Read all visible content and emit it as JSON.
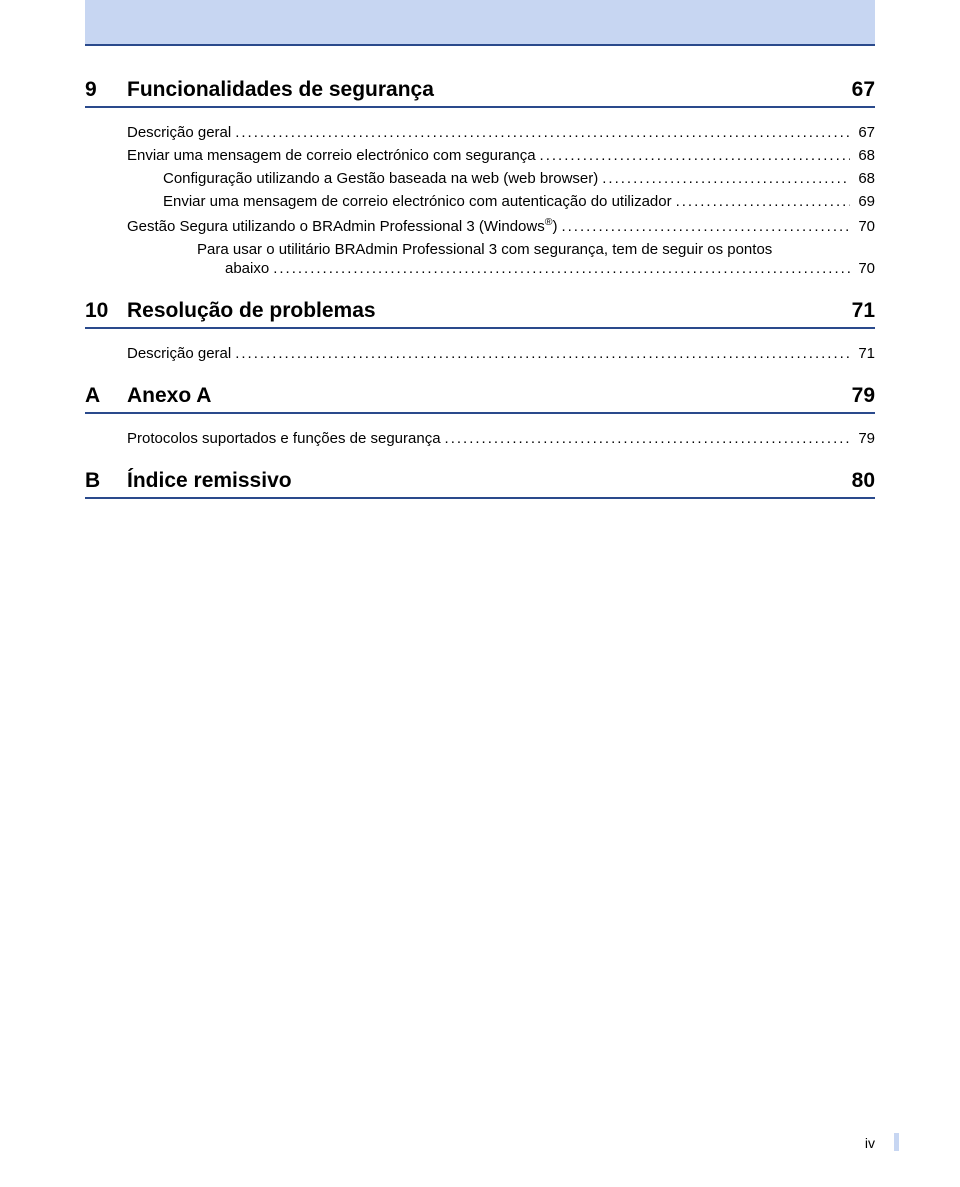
{
  "colors": {
    "band_bg": "#c7d6f2",
    "rule": "#2a4a8c",
    "text": "#000000",
    "page_bg": "#ffffff"
  },
  "sections": [
    {
      "num": "9",
      "title": "Funcionalidades de segurança",
      "page": "67",
      "entries": [
        {
          "level": 1,
          "label": "Descrição geral",
          "page": "67"
        },
        {
          "level": 1,
          "label": "Enviar uma mensagem de correio electrónico com segurança",
          "page": "68"
        },
        {
          "level": 2,
          "label": "Configuração utilizando a Gestão baseada na web (web browser)",
          "page": "68"
        },
        {
          "level": 2,
          "label": "Enviar uma mensagem de correio electrónico com autenticação do utilizador",
          "page": "69"
        },
        {
          "level": 1,
          "label_html": "Gestão Segura utilizando o BRAdmin Professional 3 (Windows<sup>®</sup>)",
          "page": "70"
        },
        {
          "level": "wrap",
          "line1": "Para usar o utilitário BRAdmin Professional 3 com segurança, tem de seguir os pontos",
          "line2_label": "abaixo",
          "line2_page": "70"
        }
      ]
    },
    {
      "num": "10",
      "title": "Resolução de problemas",
      "page": "71",
      "entries": [
        {
          "level": 1,
          "label": "Descrição geral",
          "page": "71"
        }
      ]
    },
    {
      "num": "A",
      "title": "Anexo A",
      "page": "79",
      "entries": [
        {
          "level": 1,
          "label": "Protocolos suportados e funções de segurança",
          "page": "79"
        }
      ]
    },
    {
      "num": "B",
      "title": "Índice remissivo",
      "page": "80",
      "entries": []
    }
  ],
  "footer": {
    "page_number": "iv"
  }
}
